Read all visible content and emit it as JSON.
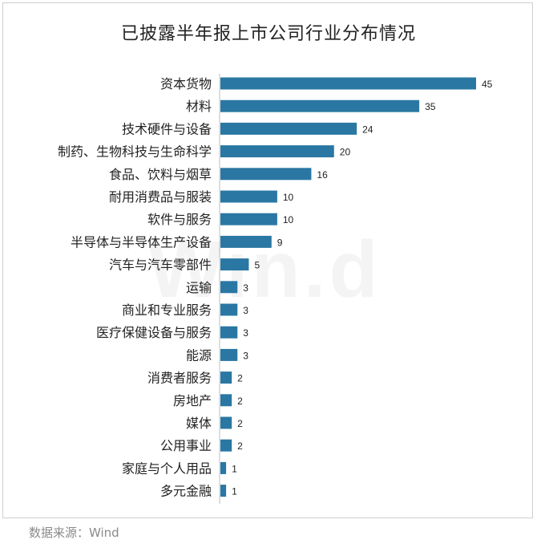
{
  "chart_data": {
    "type": "bar",
    "orientation": "horizontal",
    "title": "已披露半年报上市公司行业分布情况",
    "categories": [
      "资本货物",
      "材料",
      "技术硬件与设备",
      "制药、生物科技与生命科学",
      "食品、饮料与烟草",
      "耐用消费品与服装",
      "软件与服务",
      "半导体与半导体生产设备",
      "汽车与汽车零部件",
      "运输",
      "商业和专业服务",
      "医疗保健设备与服务",
      "能源",
      "消费者服务",
      "房地产",
      "媒体",
      "公用事业",
      "家庭与个人用品",
      "多元金融"
    ],
    "values": [
      45,
      35,
      24,
      20,
      16,
      10,
      10,
      9,
      5,
      3,
      3,
      3,
      3,
      2,
      2,
      2,
      2,
      1,
      1
    ],
    "xlim": [
      0,
      45
    ],
    "grid": false,
    "legend": "none",
    "data_labels": true,
    "bar_color": "#2a77a3",
    "watermark": "Wind"
  },
  "source": "数据来源：Wind"
}
